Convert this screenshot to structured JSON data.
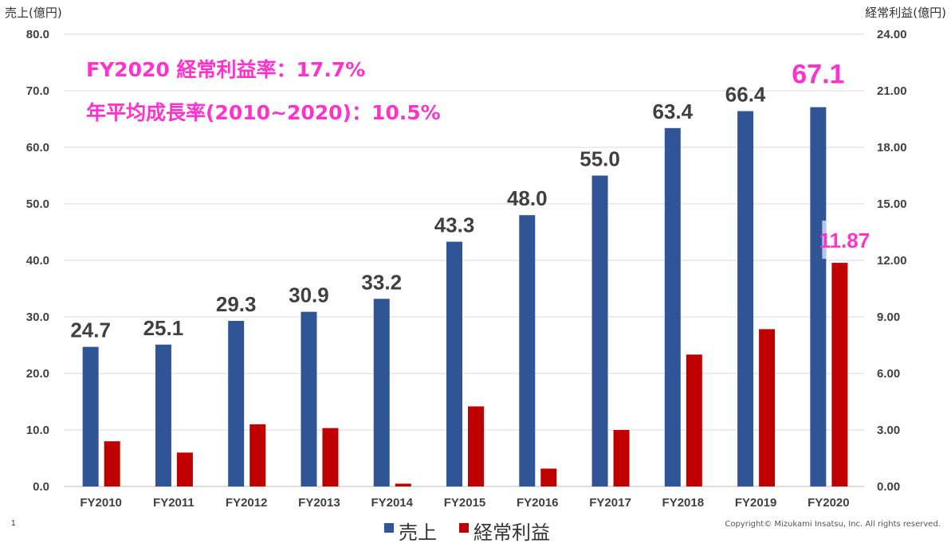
{
  "colors": {
    "sales": "#2F5597",
    "profit": "#C00000",
    "accent": "#FF33CC",
    "grid": "#D9D9D9",
    "highlight": "#B4C7E7"
  },
  "page_number": "1",
  "copyright": "Copyright© Mizukami Insatsu, Inc. All rights reserved.",
  "annotations": [
    "FY2020 経常利益率：17.7%",
    "年平均成長率(2010~2020)：10.5%"
  ],
  "chart_data": {
    "type": "bar",
    "y_left_title": "売上(億円)",
    "y_right_title": "経常利益(億円)",
    "y_left_range": [
      0,
      80
    ],
    "y_right_range": [
      0,
      24
    ],
    "y_left_ticks": [
      "0.0",
      "10.0",
      "20.0",
      "30.0",
      "40.0",
      "50.0",
      "60.0",
      "70.0",
      "80.0"
    ],
    "y_right_ticks": [
      "0.00",
      "3.00",
      "6.00",
      "9.00",
      "12.00",
      "15.00",
      "18.00",
      "21.00",
      "24.00"
    ],
    "grid": true,
    "legend_position": "bottom",
    "categories": [
      "FY2010",
      "FY2011",
      "FY2012",
      "FY2013",
      "FY2014",
      "FY2015",
      "FY2016",
      "FY2017",
      "FY2018",
      "FY2019",
      "FY2020"
    ],
    "series": [
      {
        "name": "売上",
        "axis": "left",
        "values": [
          24.7,
          25.1,
          29.3,
          30.9,
          33.2,
          43.3,
          48.0,
          55.0,
          63.4,
          66.4,
          67.1
        ],
        "labels": [
          "24.7",
          "25.1",
          "29.3",
          "30.9",
          "33.2",
          "43.3",
          "48.0",
          "55.0",
          "63.4",
          "66.4",
          "67.1"
        ]
      },
      {
        "name": "経常利益",
        "axis": "right",
        "values": [
          2.4,
          1.8,
          3.3,
          3.1,
          0.15,
          4.25,
          0.95,
          3.0,
          7.0,
          8.35,
          11.87
        ],
        "labels": [
          "",
          "",
          "",
          "",
          "",
          "",
          "",
          "",
          "",
          "",
          "11.87"
        ]
      }
    ]
  }
}
